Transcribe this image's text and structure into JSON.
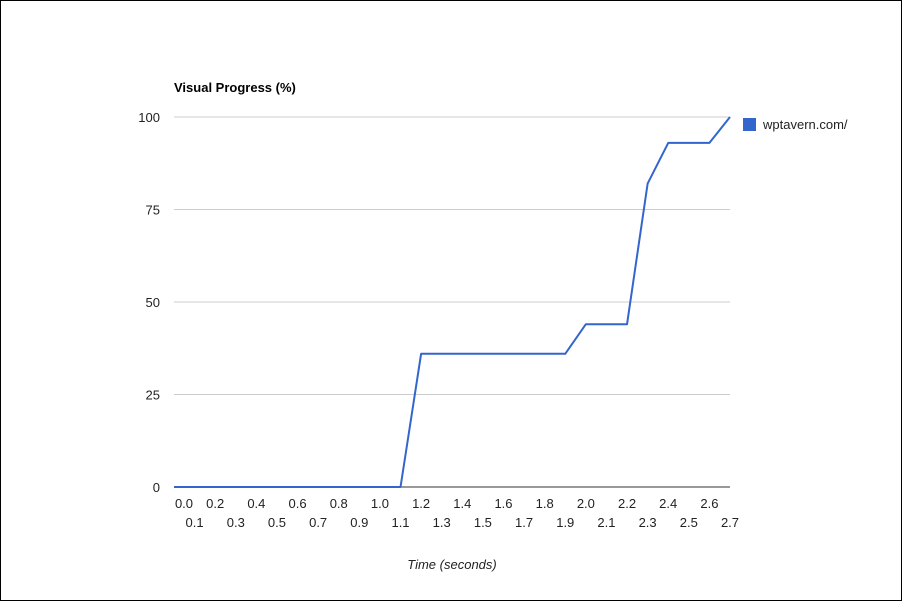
{
  "chart_data": {
    "type": "line",
    "title": "Visual Progress (%)",
    "xlabel": "Time (seconds)",
    "ylabel": "",
    "x_tick_labels": [
      "0.0",
      "0.1",
      "0.2",
      "0.3",
      "0.4",
      "0.5",
      "0.6",
      "0.7",
      "0.8",
      "0.9",
      "1.0",
      "1.1",
      "1.2",
      "1.3",
      "1.4",
      "1.5",
      "1.6",
      "1.7",
      "1.8",
      "1.9",
      "2.0",
      "2.1",
      "2.2",
      "2.3",
      "2.4",
      "2.5",
      "2.6",
      "2.7"
    ],
    "y_ticks": [
      0,
      25,
      50,
      75,
      100
    ],
    "ylim": [
      0,
      100
    ],
    "xlim": [
      0.0,
      2.7
    ],
    "grid": true,
    "legend_position": "right",
    "series": [
      {
        "name": "wptavern.com/",
        "color": "#3366cc",
        "points": [
          [
            0.0,
            0
          ],
          [
            1.1,
            0
          ],
          [
            1.2,
            36
          ],
          [
            1.9,
            36
          ],
          [
            2.0,
            44
          ],
          [
            2.2,
            44
          ],
          [
            2.3,
            82
          ],
          [
            2.4,
            93
          ],
          [
            2.6,
            93
          ],
          [
            2.7,
            100
          ]
        ]
      }
    ]
  }
}
